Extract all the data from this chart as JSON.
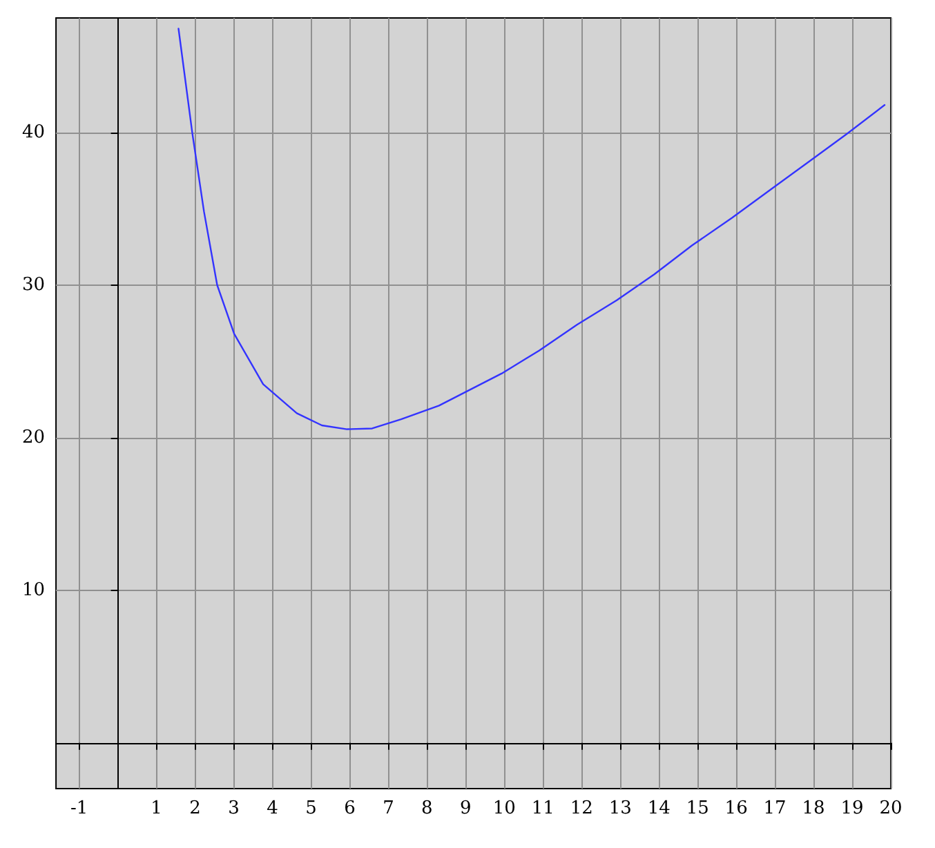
{
  "chart_data": {
    "type": "line",
    "x": [
      1.57,
      1.93,
      2.23,
      2.57,
      3.01,
      3.76,
      4.63,
      5.28,
      5.93,
      6.58,
      7.33,
      8.31,
      8.85,
      9.93,
      10.9,
      11.88,
      12.91,
      13.88,
      14.86,
      15.89,
      16.86,
      17.89,
      18.86,
      19.84
    ],
    "series": [
      {
        "color": "#3333ff",
        "values": [
          46.8,
          39.9,
          34.8,
          30.0,
          26.8,
          23.5,
          21.6,
          20.8,
          20.55,
          20.6,
          21.2,
          22.1,
          22.8,
          24.2,
          25.7,
          27.4,
          29.0,
          30.7,
          32.6,
          34.4,
          36.2,
          38.1,
          39.9,
          41.8
        ]
      }
    ],
    "xlim": [
      -1.6,
      20
    ],
    "ylim": [
      -3,
      47.5
    ],
    "xticks": [
      -1,
      1,
      2,
      3,
      4,
      5,
      6,
      7,
      8,
      9,
      10,
      11,
      12,
      13,
      14,
      15,
      16,
      17,
      18,
      19,
      20
    ],
    "yticks": [
      10,
      20,
      30,
      40
    ],
    "grid": true,
    "marker": "none",
    "line_style": "solid"
  }
}
